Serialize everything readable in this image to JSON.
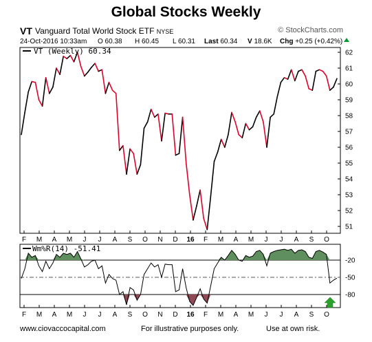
{
  "header": {
    "title": "Global Stocks Weekly",
    "symbol": "VT",
    "fund_name": "Vanguard Total World Stock ETF",
    "exchange": "NYSE",
    "source": "© StockCharts.com",
    "timestamp": "24-Oct-2016 10:33am",
    "quote": {
      "open": "O 60.38",
      "high": "H 60.45",
      "low": "L 60.31",
      "last_label": "Last",
      "last": "60.34",
      "volume_label": "V",
      "volume": "18.6K",
      "change_label": "Chg",
      "change": "+0.25 (+0.42%)"
    }
  },
  "footer": {
    "left": "www.ciovaccocapital.com",
    "center": "For illustrative purposes only.",
    "right": "Use at own risk."
  },
  "chart_data": [
    {
      "type": "line",
      "legend": "VT (Weekly) 60.34",
      "x_tick_labels": [
        "F",
        "M",
        "A",
        "M",
        "J",
        "J",
        "A",
        "S",
        "O",
        "N",
        "D",
        "16",
        "F",
        "M",
        "A",
        "M",
        "J",
        "J",
        "A",
        "S",
        "O"
      ],
      "y_ticks": [
        51,
        52,
        53,
        54,
        55,
        56,
        57,
        58,
        59,
        60,
        61,
        62
      ],
      "ylim": [
        50.6,
        62.3
      ],
      "up_color": "#000000",
      "down_color": "#e0002a",
      "values": [
        56.8,
        58.2,
        59.5,
        60.15,
        60.1,
        59.0,
        58.6,
        60.4,
        59.4,
        59.8,
        61.0,
        60.6,
        61.75,
        61.6,
        61.8,
        61.4,
        62.0,
        61.1,
        60.5,
        60.75,
        61.05,
        61.3,
        60.8,
        60.9,
        59.4,
        60.1,
        59.6,
        59.4,
        55.8,
        56.1,
        54.3,
        55.9,
        55.6,
        54.3,
        54.9,
        57.2,
        57.6,
        58.4,
        57.9,
        58.1,
        56.4,
        58.15,
        58.1,
        58.1,
        55.5,
        55.6,
        57.9,
        55.0,
        53.0,
        51.4,
        52.3,
        53.3,
        51.5,
        50.8,
        52.9,
        55.1,
        55.7,
        56.5,
        56.0,
        56.8,
        58.2,
        57.6,
        56.8,
        56.6,
        57.5,
        57.1,
        57.3,
        57.9,
        58.3,
        57.6,
        56.0,
        57.9,
        58.1,
        59.2,
        60.1,
        60.4,
        60.3,
        60.9,
        60.2,
        60.8,
        60.9,
        60.5,
        59.7,
        59.6,
        60.8,
        60.9,
        60.8,
        60.5,
        59.6,
        59.8,
        60.34
      ]
    },
    {
      "type": "line",
      "legend": "Wm%R(14) -51.41",
      "ylim": [
        -100,
        0
      ],
      "y_ticks": [
        -20,
        -50,
        -80
      ],
      "reference_lines": [
        -20,
        -50,
        -80
      ],
      "fill_color": "#5f8f5f",
      "values": [
        -52,
        -35,
        -8,
        -15,
        -12,
        -30,
        -40,
        -22,
        -35,
        -25,
        -10,
        -15,
        -8,
        -10,
        -8,
        -15,
        -5,
        -18,
        -32,
        -28,
        -22,
        -20,
        -35,
        -30,
        -60,
        -45,
        -52,
        -55,
        -80,
        -75,
        -98,
        -68,
        -72,
        -90,
        -80,
        -45,
        -35,
        -25,
        -32,
        -28,
        -50,
        -27,
        -28,
        -28,
        -75,
        -72,
        -35,
        -68,
        -92,
        -99,
        -85,
        -70,
        -88,
        -95,
        -65,
        -35,
        -25,
        -15,
        -20,
        -12,
        -3,
        -10,
        -20,
        -22,
        -12,
        -15,
        -13,
        -5,
        -3,
        -10,
        -30,
        -8,
        -5,
        -3,
        -2,
        -1,
        -3,
        -1,
        -8,
        -3,
        -2,
        -5,
        -15,
        -17,
        -5,
        -3,
        -6,
        -10,
        -60,
        -55,
        -51.41
      ],
      "signal_marker": "up-arrow"
    }
  ]
}
